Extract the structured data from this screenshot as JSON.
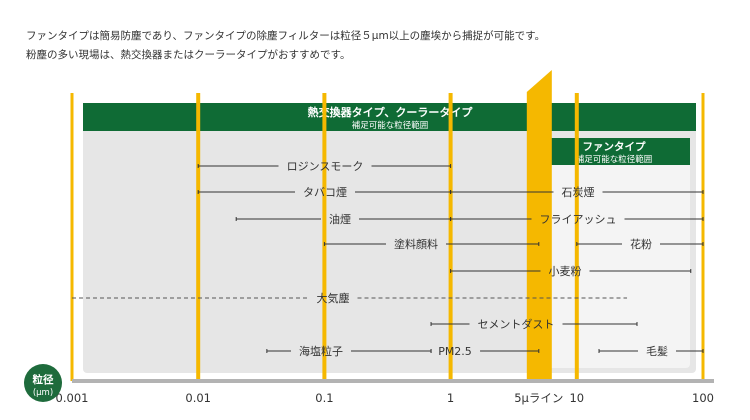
{
  "intro": {
    "line1": "ファンタイプは簡易防塵であり、ファンタイプの除塵フィルターは粒径５μm以上の塵埃から捕捉が可能です。",
    "line2": "粉塵の多い現場は、熱交換器またはクーラータイプがおすすめです。"
  },
  "chart_data": {
    "type": "range",
    "x_scale": "log",
    "x_unit": "μm",
    "xlim": [
      0.001,
      100
    ],
    "x_ticks": [
      {
        "value": 0.001,
        "label": "0.001"
      },
      {
        "value": 0.01,
        "label": "0.01"
      },
      {
        "value": 0.1,
        "label": "0.1"
      },
      {
        "value": 1,
        "label": "1"
      },
      {
        "value": 10,
        "label": "10"
      },
      {
        "value": 100,
        "label": "100"
      }
    ],
    "x_badge": {
      "label": "粒径",
      "unit": "(μm)",
      "color": "#1e6b3c"
    },
    "five_micron_line": {
      "value": 5,
      "label": "5μライン",
      "color": "#f5b800"
    },
    "regions": [
      {
        "title": "熱交換器タイプ、クーラータイプ",
        "subtitle": "補足可能な粒径範囲",
        "from": 0.001,
        "to": 100,
        "header_color": "#0f6b35",
        "fill": "#e6e6e6"
      },
      {
        "title": "ファンタイプ",
        "subtitle": "補足可能な粒径範囲",
        "from": 5,
        "to": 100,
        "header_color": "#0f6b35",
        "fill": "#f4f4f4"
      }
    ],
    "series": [
      {
        "name": "ロジンスモーク",
        "from": 0.01,
        "to": 1
      },
      {
        "name": "タバコ煙",
        "from": 0.01,
        "to": 1
      },
      {
        "name": "石炭煙",
        "from": 1,
        "to": 100
      },
      {
        "name": "油煙",
        "from": 0.02,
        "to": 1
      },
      {
        "name": "フライアッシュ",
        "from": 1,
        "to": 100
      },
      {
        "name": "塗料顔料",
        "from": 0.1,
        "to": 5
      },
      {
        "name": "花粉",
        "from": 10,
        "to": 100
      },
      {
        "name": "小麦粉",
        "from": 1,
        "to": 80
      },
      {
        "name": "大気塵",
        "from": 0.001,
        "to": 25,
        "dashed": true
      },
      {
        "name": "セメントダスト",
        "from": 0.7,
        "to": 30
      },
      {
        "name": "海塩粒子",
        "from": 0.035,
        "to": 0.7
      },
      {
        "name": "PM2.5",
        "from": 0.7,
        "to": 5
      },
      {
        "name": "毛髪",
        "from": 15,
        "to": 100
      }
    ],
    "colors": {
      "tick_line": "#f5b800",
      "axis": "#b3b3b3",
      "range_line": "#333333"
    }
  }
}
